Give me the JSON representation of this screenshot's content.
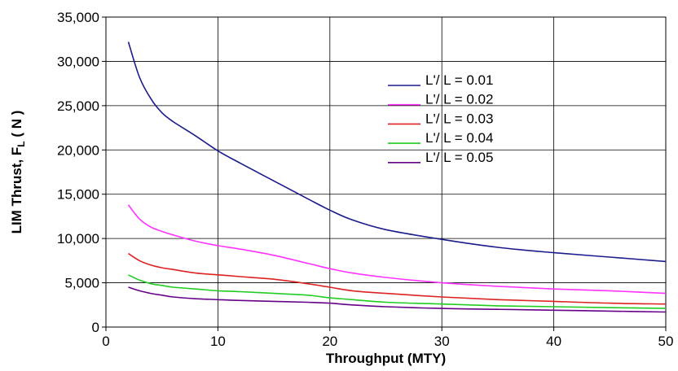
{
  "chart_data": {
    "type": "line",
    "xlabel": "Throughput (MTY)",
    "ylabel_main": "LIM Thrust, F",
    "ylabel_sub": "L",
    "ylabel_unit": " ( N )",
    "xlim": [
      0,
      50
    ],
    "ylim": [
      0,
      35000
    ],
    "xticks": [
      0,
      10,
      20,
      30,
      40,
      50
    ],
    "yticks": [
      0,
      5000,
      10000,
      15000,
      20000,
      25000,
      30000,
      35000
    ],
    "xtick_labels": [
      "0",
      "10",
      "20",
      "30",
      "40",
      "50"
    ],
    "ytick_labels": [
      "0",
      "5,000",
      "10,000",
      "15,000",
      "20,000",
      "25,000",
      "30,000",
      "35,000"
    ],
    "grid": true,
    "legend_position": "upper-center-right",
    "series": [
      {
        "name": "L'/ L = 0.01",
        "color": "#1a1a8c",
        "x": [
          2,
          3,
          4,
          5,
          6,
          8,
          10,
          12,
          15,
          18,
          20,
          22,
          25,
          30,
          35,
          40,
          45,
          50
        ],
        "y": [
          32200,
          28200,
          25800,
          24200,
          23200,
          21600,
          19900,
          18500,
          16500,
          14500,
          13200,
          12100,
          11000,
          9900,
          9000,
          8400,
          7900,
          7400
        ]
      },
      {
        "name": "L'/ L = 0.02",
        "color": "#ff33ff",
        "x": [
          2,
          3,
          4,
          5,
          6,
          8,
          10,
          12,
          15,
          18,
          20,
          22,
          25,
          30,
          35,
          40,
          45,
          50
        ],
        "y": [
          13800,
          12200,
          11300,
          10800,
          10400,
          9700,
          9200,
          8800,
          8100,
          7200,
          6600,
          6100,
          5600,
          5000,
          4600,
          4300,
          4100,
          3800
        ]
      },
      {
        "name": "L'/ L = 0.03",
        "color": "#dd2222",
        "x": [
          2,
          3,
          4,
          5,
          6,
          8,
          10,
          12,
          15,
          18,
          20,
          22,
          25,
          30,
          35,
          40,
          45,
          50
        ],
        "y": [
          8300,
          7500,
          7000,
          6700,
          6500,
          6100,
          5900,
          5700,
          5400,
          4900,
          4500,
          4100,
          3800,
          3400,
          3100,
          2900,
          2700,
          2600
        ]
      },
      {
        "name": "L'/ L = 0.04",
        "color": "#22cc22",
        "x": [
          2,
          3,
          4,
          5,
          6,
          8,
          10,
          12,
          15,
          18,
          20,
          22,
          25,
          30,
          35,
          40,
          45,
          50
        ],
        "y": [
          5900,
          5300,
          4900,
          4700,
          4500,
          4300,
          4100,
          4000,
          3800,
          3600,
          3300,
          3100,
          2800,
          2600,
          2400,
          2300,
          2200,
          2100
        ]
      },
      {
        "name": "L'/ L = 0.05",
        "color": "#660088",
        "x": [
          2,
          3,
          4,
          5,
          6,
          8,
          10,
          12,
          15,
          18,
          20,
          22,
          25,
          30,
          35,
          40,
          45,
          50
        ],
        "y": [
          4500,
          4100,
          3800,
          3600,
          3400,
          3200,
          3100,
          3000,
          2900,
          2800,
          2700,
          2500,
          2300,
          2100,
          2000,
          1900,
          1800,
          1700
        ]
      }
    ]
  }
}
